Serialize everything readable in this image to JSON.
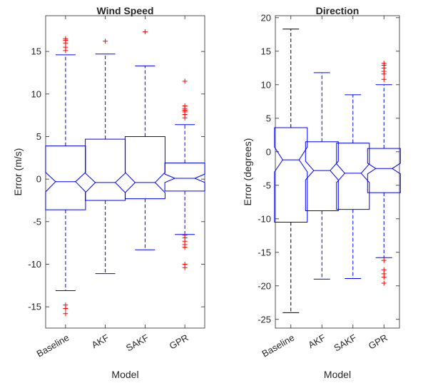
{
  "chart_data": [
    {
      "type": "boxplot",
      "title": "Wind Speed",
      "xlabel": "Model",
      "ylabel": "Error (m/s)",
      "ylim": [
        -17.5,
        19.2
      ],
      "yticks": [
        -15,
        -10,
        -5,
        0,
        5,
        10,
        15
      ],
      "notched": true,
      "categories": [
        "Baseline",
        "AKF",
        "SAKF",
        "GPR"
      ],
      "boxes": [
        {
          "q1": -3.6,
          "median": -0.3,
          "q3": 3.9,
          "notch_low": -1.5,
          "notch_high": 0.8,
          "whisker_low": -13.1,
          "whisker_high": 14.6,
          "outliers": [
            15.1,
            15.5,
            16.0,
            16.3,
            16.5,
            -14.8,
            -15.2,
            -15.8
          ]
        },
        {
          "q1": -2.5,
          "median": -0.4,
          "q3": 4.7,
          "notch_low": -1.6,
          "notch_high": 0.7,
          "whisker_low": -11.1,
          "whisker_high": 14.7,
          "outliers": [
            16.2
          ]
        },
        {
          "q1": -2.3,
          "median": -0.4,
          "q3": 5.0,
          "notch_low": -1.6,
          "notch_high": 0.8,
          "whisker_low": -8.3,
          "whisker_high": 13.3,
          "outliers": [
            17.3
          ]
        },
        {
          "q1": -1.4,
          "median": 0.1,
          "q3": 1.9,
          "notch_low": -0.4,
          "notch_high": 0.6,
          "whisker_low": -6.5,
          "whisker_high": 6.4,
          "outliers": [
            7.2,
            7.6,
            7.9,
            8.1,
            8.3,
            8.6,
            11.5,
            -6.6,
            -6.9,
            -7.3,
            -7.7,
            -8.0,
            -10.0,
            -10.4
          ]
        }
      ]
    },
    {
      "type": "boxplot",
      "title": "Direction",
      "xlabel": "Model",
      "ylabel": "Error (degrees)",
      "ylim": [
        -26.3,
        20.3
      ],
      "yticks": [
        -25,
        -20,
        -15,
        -10,
        -5,
        0,
        5,
        10,
        15,
        20
      ],
      "notched": true,
      "categories": [
        "Baseline",
        "AKF",
        "SAKF",
        "GPR"
      ],
      "boxes": [
        {
          "q1": -10.5,
          "median": -1.2,
          "q3": 3.6,
          "notch_low": -3.0,
          "notch_high": 0.7,
          "whisker_low": -24.0,
          "whisker_high": 18.3,
          "outliers": [],
          "whisker_color": "#000000"
        },
        {
          "q1": -8.8,
          "median": -2.8,
          "q3": 1.5,
          "notch_low": -4.2,
          "notch_high": -1.4,
          "whisker_low": -19.0,
          "whisker_high": 11.8,
          "outliers": []
        },
        {
          "q1": -8.6,
          "median": -3.2,
          "q3": 1.3,
          "notch_low": -4.6,
          "notch_high": -1.8,
          "whisker_low": -18.9,
          "whisker_high": 8.5,
          "outliers": []
        },
        {
          "q1": -6.1,
          "median": -2.5,
          "q3": 0.5,
          "notch_low": -3.3,
          "notch_high": -1.7,
          "whisker_low": -15.8,
          "whisker_high": 10.0,
          "outliers": [
            10.8,
            11.6,
            12.0,
            12.5,
            12.9,
            13.2,
            -16.2,
            -17.6,
            -18.2,
            -18.7,
            -19.6
          ]
        }
      ]
    }
  ],
  "colors": {
    "box": "#0000ff",
    "whisker": "#0000ff",
    "outlier": "#ff0000",
    "axis": "#262626"
  }
}
